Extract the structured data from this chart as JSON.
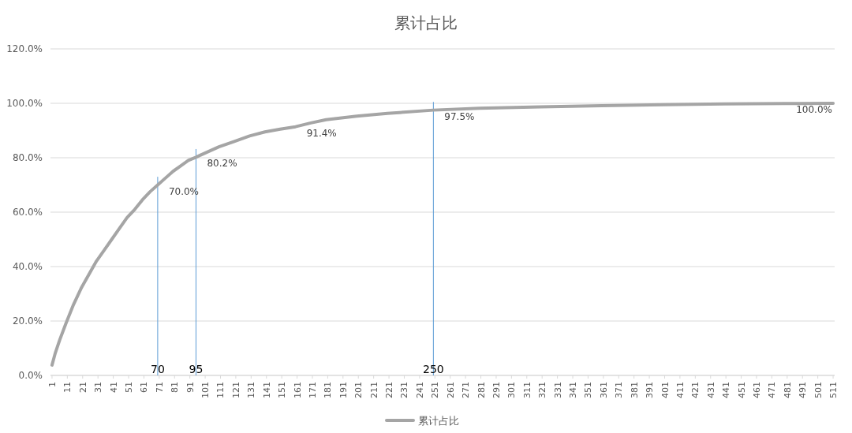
{
  "chart_data": {
    "type": "line",
    "title": "累计占比",
    "x": [
      1,
      3,
      6,
      10,
      15,
      20,
      25,
      30,
      35,
      40,
      45,
      50,
      55,
      60,
      65,
      70,
      75,
      80,
      85,
      90,
      95,
      100,
      110,
      120,
      130,
      140,
      150,
      160,
      170,
      180,
      200,
      220,
      250,
      280,
      320,
      360,
      400,
      440,
      480,
      511
    ],
    "series": [
      {
        "name": "累计占比",
        "color": "#a5a5a5",
        "values": [
          3.8,
          8,
          13,
          19,
          26,
          32,
          37,
          42,
          46,
          50,
          54,
          58,
          61,
          64.5,
          67.5,
          70.0,
          72.5,
          75,
          77,
          79,
          80.2,
          81.5,
          84,
          86,
          88,
          89.5,
          90.5,
          91.4,
          92.8,
          94,
          95.3,
          96.3,
          97.5,
          98.2,
          98.7,
          99.1,
          99.5,
          99.8,
          99.9,
          100.0
        ]
      }
    ],
    "xlim": [
      0,
      512
    ],
    "xticks": [
      1,
      11,
      21,
      31,
      41,
      51,
      61,
      71,
      81,
      91,
      101,
      111,
      121,
      131,
      141,
      151,
      161,
      171,
      181,
      191,
      201,
      211,
      221,
      231,
      241,
      251,
      261,
      271,
      281,
      291,
      301,
      311,
      321,
      331,
      341,
      351,
      361,
      371,
      381,
      391,
      401,
      411,
      421,
      431,
      441,
      451,
      461,
      471,
      481,
      491,
      501,
      511
    ],
    "ylim": [
      0,
      120
    ],
    "yticks": [
      {
        "value": 0,
        "label": "0.0%"
      },
      {
        "value": 20,
        "label": "20.0%"
      },
      {
        "value": 40,
        "label": "40.0%"
      },
      {
        "value": 60,
        "label": "60.0%"
      },
      {
        "value": 80,
        "label": "80.0%"
      },
      {
        "value": 100,
        "label": "100.0%"
      },
      {
        "value": 120,
        "label": "120.0%"
      }
    ],
    "grid": "y",
    "legend": "bottom",
    "marker": "none",
    "line_style": "solid",
    "ref_lines": [
      {
        "axis": "x",
        "value": 70,
        "label": "70",
        "color": "#5b9bd5"
      },
      {
        "axis": "x",
        "value": 95,
        "label": "95",
        "color": "#5b9bd5"
      },
      {
        "axis": "x",
        "value": 250,
        "label": "250",
        "color": "#5b9bd5"
      }
    ],
    "annotations": [
      {
        "text": "70.0%",
        "x": 70,
        "y": 70.0
      },
      {
        "text": "80.2%",
        "x": 95,
        "y": 80.2
      },
      {
        "text": "91.4%",
        "x": 160,
        "y": 91.4
      },
      {
        "text": "97.5%",
        "x": 250,
        "y": 97.5
      },
      {
        "text": "100.0%",
        "x": 511,
        "y": 100.0
      }
    ]
  }
}
